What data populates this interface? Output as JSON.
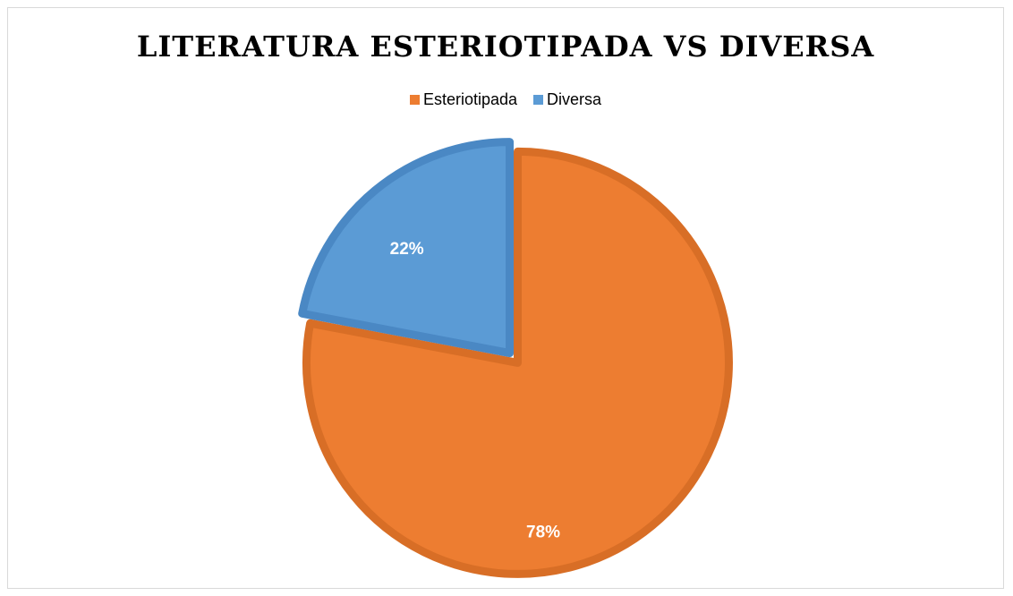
{
  "chart_data": {
    "type": "pie",
    "title": "LITERATURA ESTERIOTIPADA VS DIVERSA",
    "legend_position": "top",
    "start_angle_deg": 0,
    "direction": "clockwise",
    "slices": [
      {
        "label": "Esteriotipada",
        "value": 78,
        "display": "78%",
        "color": "#ED7D31",
        "border_color": "#D86E26"
      },
      {
        "label": "Diversa",
        "value": 22,
        "display": "22%",
        "color": "#5B9BD5",
        "border_color": "#4A88C4"
      }
    ]
  }
}
